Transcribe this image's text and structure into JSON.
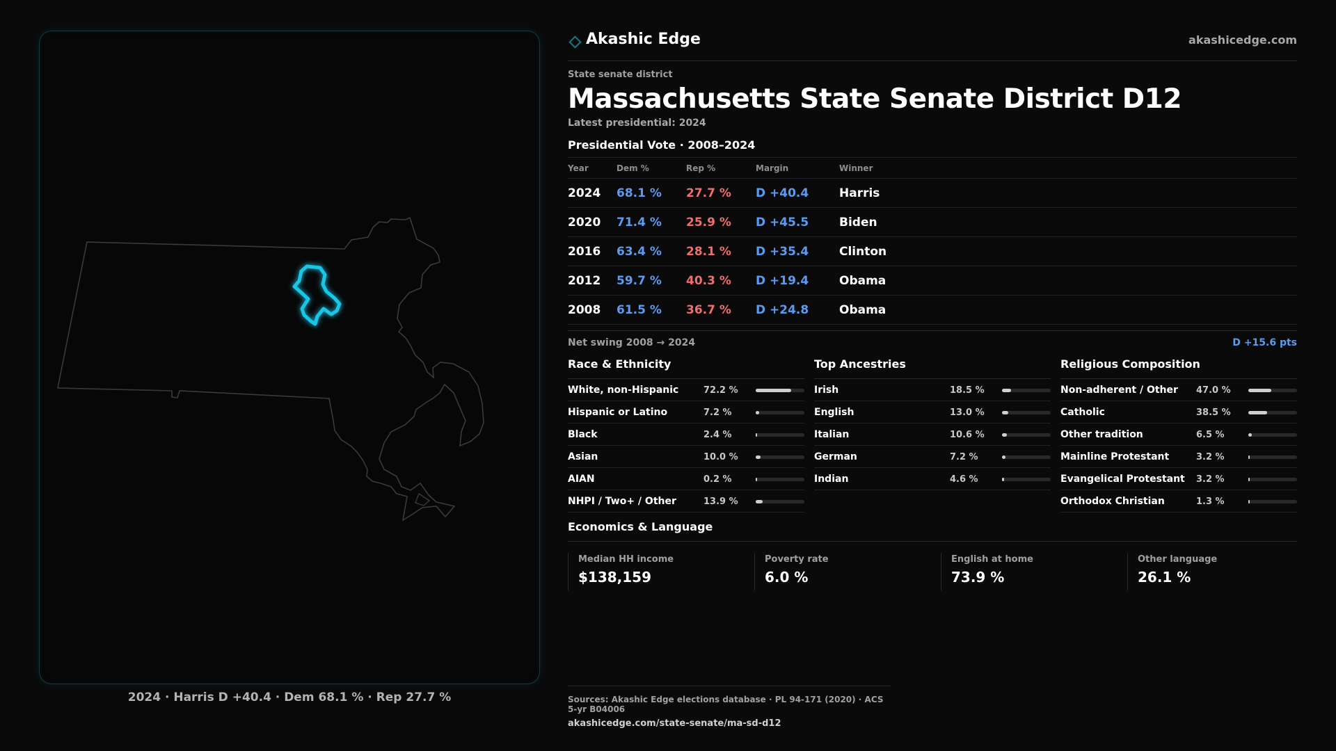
{
  "brand": {
    "name": "Akashic Edge",
    "url": "akashicedge.com"
  },
  "district": {
    "kicker": "State senate district",
    "title": "Massachusetts State Senate District D12",
    "latest": "Latest presidential: 2024"
  },
  "votes": {
    "section_title": "Presidential Vote · 2008–2024",
    "headers": {
      "year": "Year",
      "dem": "Dem %",
      "rep": "Rep %",
      "margin": "Margin",
      "winner": "Winner"
    },
    "rows": [
      {
        "year": "2024",
        "dem": "68.1 %",
        "rep": "27.7 %",
        "margin": "D +40.4",
        "winner": "Harris"
      },
      {
        "year": "2020",
        "dem": "71.4 %",
        "rep": "25.9 %",
        "margin": "D +45.5",
        "winner": "Biden"
      },
      {
        "year": "2016",
        "dem": "63.4 %",
        "rep": "28.1 %",
        "margin": "D +35.4",
        "winner": "Clinton"
      },
      {
        "year": "2012",
        "dem": "59.7 %",
        "rep": "40.3 %",
        "margin": "D +19.4",
        "winner": "Obama"
      },
      {
        "year": "2008",
        "dem": "61.5 %",
        "rep": "36.7 %",
        "margin": "D +24.8",
        "winner": "Obama"
      }
    ],
    "swing_label": "Net swing 2008 → 2024",
    "swing_value": "D +15.6 pts"
  },
  "demographics": [
    {
      "title": "Race & Ethnicity",
      "rows": [
        {
          "label": "White, non-Hispanic",
          "value": "72.2 %",
          "pct": 72.2
        },
        {
          "label": "Hispanic or Latino",
          "value": "7.2 %",
          "pct": 7.2
        },
        {
          "label": "Black",
          "value": "2.4 %",
          "pct": 2.4
        },
        {
          "label": "Asian",
          "value": "10.0 %",
          "pct": 10.0
        },
        {
          "label": "AIAN",
          "value": "0.2 %",
          "pct": 0.2
        },
        {
          "label": "NHPI / Two+ / Other",
          "value": "13.9 %",
          "pct": 13.9
        }
      ]
    },
    {
      "title": "Top Ancestries",
      "rows": [
        {
          "label": "Irish",
          "value": "18.5 %",
          "pct": 18.5
        },
        {
          "label": "English",
          "value": "13.0 %",
          "pct": 13.0
        },
        {
          "label": "Italian",
          "value": "10.6 %",
          "pct": 10.6
        },
        {
          "label": "German",
          "value": "7.2 %",
          "pct": 7.2
        },
        {
          "label": "Indian",
          "value": "4.6 %",
          "pct": 4.6
        }
      ]
    },
    {
      "title": "Religious Composition",
      "rows": [
        {
          "label": "Non-adherent / Other",
          "value": "47.0 %",
          "pct": 47.0
        },
        {
          "label": "Catholic",
          "value": "38.5 %",
          "pct": 38.5
        },
        {
          "label": "Other tradition",
          "value": "6.5 %",
          "pct": 6.5
        },
        {
          "label": "Mainline Protestant",
          "value": "3.2 %",
          "pct": 3.2
        },
        {
          "label": "Evangelical Protestant",
          "value": "3.2 %",
          "pct": 3.2
        },
        {
          "label": "Orthodox Christian",
          "value": "1.3 %",
          "pct": 1.3
        }
      ]
    }
  ],
  "economics": {
    "title": "Economics & Language",
    "items": [
      {
        "label": "Median HH income",
        "value": "$138,159"
      },
      {
        "label": "Poverty rate",
        "value": "6.0 %"
      },
      {
        "label": "English at home",
        "value": "73.9 %"
      },
      {
        "label": "Other language",
        "value": "26.1 %"
      }
    ]
  },
  "map": {
    "caption": "2024 · Harris D +40.4 · Dem 68.1 % · Rep 27.7 %",
    "highlight_color": "#19c6e6",
    "outline_color": "#3a3a3a"
  },
  "footer": {
    "sources": "Sources: Akashic Edge elections database · PL 94-171 (2020) · ACS 5-yr B04006",
    "url": "akashicedge.com/state-senate/ma-sd-d12"
  }
}
